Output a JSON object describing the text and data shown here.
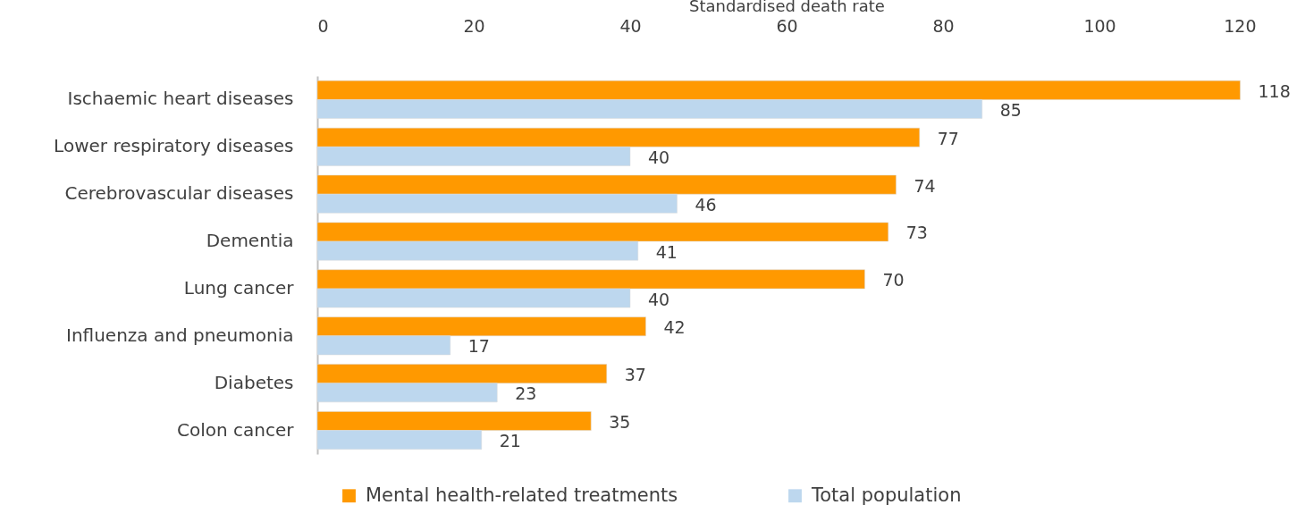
{
  "chart_data": {
    "type": "bar",
    "orientation": "horizontal",
    "xlabel": "Standardised death rate",
    "categories": [
      "Ischaemic heart diseases",
      "Lower respiratory diseases",
      "Cerebrovascular diseases",
      "Dementia",
      "Lung cancer",
      "Influenza and pneumonia",
      "Diabetes",
      "Colon cancer"
    ],
    "series": [
      {
        "name": "Mental health-related treatments",
        "color": "#ff9900",
        "values": [
          118,
          77,
          74,
          73,
          70,
          42,
          37,
          35
        ]
      },
      {
        "name": "Total population",
        "color": "#bdd7ee",
        "values": [
          85,
          40,
          46,
          41,
          40,
          17,
          23,
          21
        ]
      }
    ],
    "xlim": [
      0,
      120
    ],
    "xticks": [
      0,
      20,
      40,
      60,
      80,
      100,
      120
    ],
    "data_labels": true,
    "legend": "bottom",
    "grid": false
  }
}
